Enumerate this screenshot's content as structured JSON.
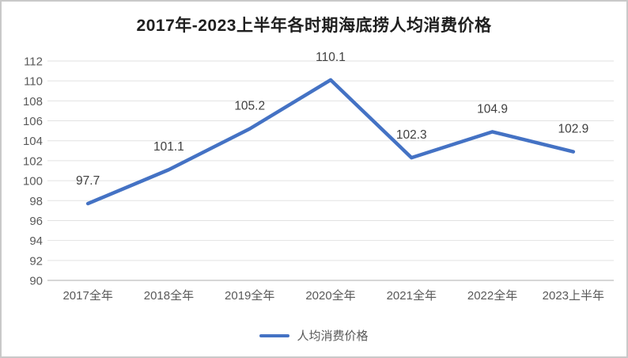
{
  "chart_data": {
    "type": "line",
    "title": "2017年-2023上半年各时期海底捞人均消费价格",
    "categories": [
      "2017全年",
      "2018全年",
      "2019全年",
      "2020全年",
      "2021全年",
      "2022全年",
      "2023上半年"
    ],
    "series": [
      {
        "name": "人均消费价格",
        "values": [
          97.7,
          101.1,
          105.2,
          110.1,
          102.3,
          104.9,
          102.9
        ],
        "data_labels": [
          "97.7",
          "101.1",
          "105.2",
          "110.1",
          "102.3",
          "104.9",
          "102.9"
        ]
      }
    ],
    "ylim": [
      90,
      112
    ],
    "ytick_step": 2,
    "ytick_labels": [
      "90",
      "92",
      "94",
      "96",
      "98",
      "100",
      "102",
      "104",
      "106",
      "108",
      "110",
      "112"
    ],
    "grid": "horizontal",
    "legend_position": "bottom",
    "colors": {
      "line": "#4472C4",
      "gridline": "#e2e2e2",
      "axis_line": "#c8c8c8",
      "tick_label": "#595959",
      "data_label": "#404040",
      "title": "#1f1f1f"
    }
  }
}
